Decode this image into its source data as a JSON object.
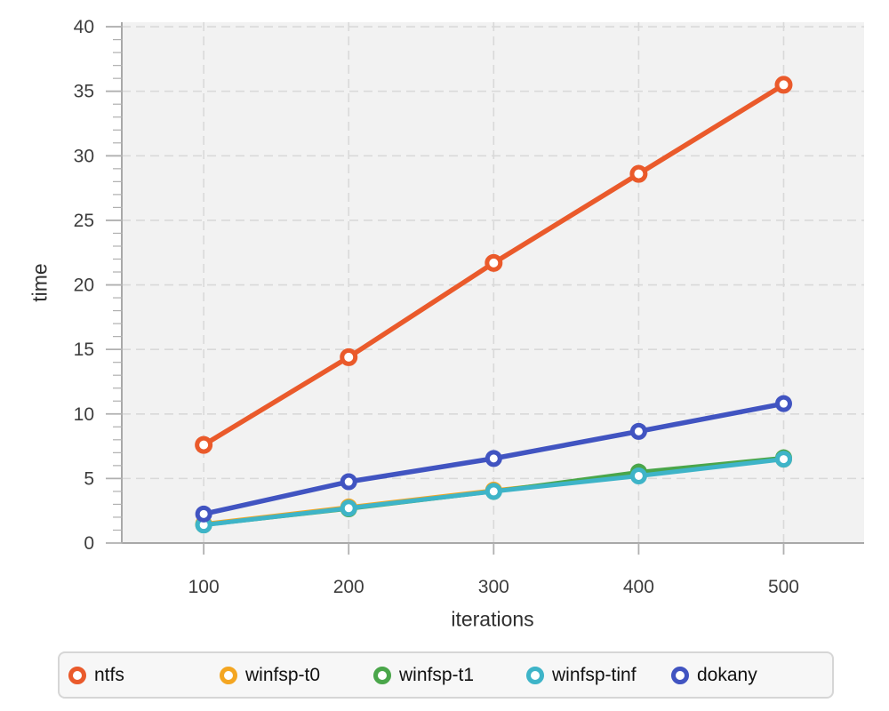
{
  "chart_data": {
    "type": "line",
    "title": "",
    "xlabel": "iterations",
    "ylabel": "time",
    "x": [
      100,
      200,
      300,
      400,
      500
    ],
    "xticks": [
      100,
      200,
      300,
      400,
      500
    ],
    "yticks": [
      0,
      5,
      10,
      15,
      20,
      25,
      30,
      35,
      40
    ],
    "xlim": [
      43.5,
      555.5
    ],
    "ylim": [
      0,
      40.35
    ],
    "grid": true,
    "minor_yticks_step": 1,
    "legend_position": "bottom",
    "plot_bg_color": "#f2f2f2",
    "gridline_color": "#d9d9d9",
    "axisline_color": "#a8a8a8",
    "tick_color": "#b0b0b0",
    "tick_label_color": "#3d3d3d",
    "series": [
      {
        "name": "ntfs",
        "color": "#ea5a2b",
        "values": [
          7.6,
          14.4,
          21.7,
          28.6,
          35.5
        ]
      },
      {
        "name": "winfsp-t0",
        "color": "#f4a621",
        "values": [
          1.5,
          2.8,
          4.1,
          5.25,
          6.5
        ]
      },
      {
        "name": "winfsp-t1",
        "color": "#4aa64a",
        "values": [
          1.4,
          2.65,
          4.0,
          5.5,
          6.6
        ]
      },
      {
        "name": "winfsp-tinf",
        "color": "#3eb4c8",
        "values": [
          1.4,
          2.7,
          4.0,
          5.2,
          6.5
        ]
      },
      {
        "name": "dokany",
        "color": "#4154c1",
        "values": [
          2.25,
          4.75,
          6.55,
          8.65,
          10.8
        ]
      }
    ]
  }
}
